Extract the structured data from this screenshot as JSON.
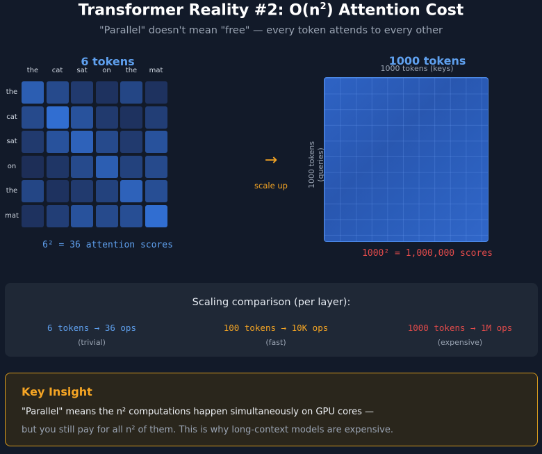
{
  "header": {
    "title_prefix": "Transformer Reality #2: O(n",
    "title_exp": "2",
    "title_suffix": ") Attention Cost",
    "subtitle": "\"Parallel\" doesn't mean \"free\" — every token attends to every other"
  },
  "small_matrix": {
    "title": "6 tokens",
    "tokens": [
      "the",
      "cat",
      "sat",
      "on",
      "the",
      "mat"
    ],
    "weights": [
      [
        0.7,
        0.45,
        0.25,
        0.15,
        0.4,
        0.15
      ],
      [
        0.45,
        0.9,
        0.55,
        0.25,
        0.15,
        0.3
      ],
      [
        0.25,
        0.55,
        0.75,
        0.45,
        0.25,
        0.55
      ],
      [
        0.1,
        0.2,
        0.45,
        0.7,
        0.35,
        0.45
      ],
      [
        0.4,
        0.15,
        0.25,
        0.35,
        0.75,
        0.5
      ],
      [
        0.15,
        0.3,
        0.55,
        0.45,
        0.5,
        0.9
      ]
    ],
    "caption": "6² = 36 attention scores"
  },
  "transition": {
    "arrow": "→",
    "label": "scale up"
  },
  "big_matrix": {
    "title": "1000 tokens",
    "keys_label": "1000 tokens (keys)",
    "queries_label": "1000 tokens (queries)",
    "caption": "1000² = 1,000,000 scores"
  },
  "comparison": {
    "title": "Scaling comparison (per layer):",
    "items": [
      {
        "value": "6 tokens → 36 ops",
        "note": "(trivial)",
        "color": "#5fa0ee"
      },
      {
        "value": "100 tokens → 10K ops",
        "note": "(fast)",
        "color": "#f5a524"
      },
      {
        "value": "1000 tokens → 1M ops",
        "note": "(expensive)",
        "color": "#e24b4b"
      }
    ]
  },
  "insight": {
    "title": "Key Insight",
    "line1": "\"Parallel\" means the n² computations happen simultaneously on GPU cores —",
    "line2": "but you still pay for all n² of them. This is why long-context models are expensive."
  }
}
